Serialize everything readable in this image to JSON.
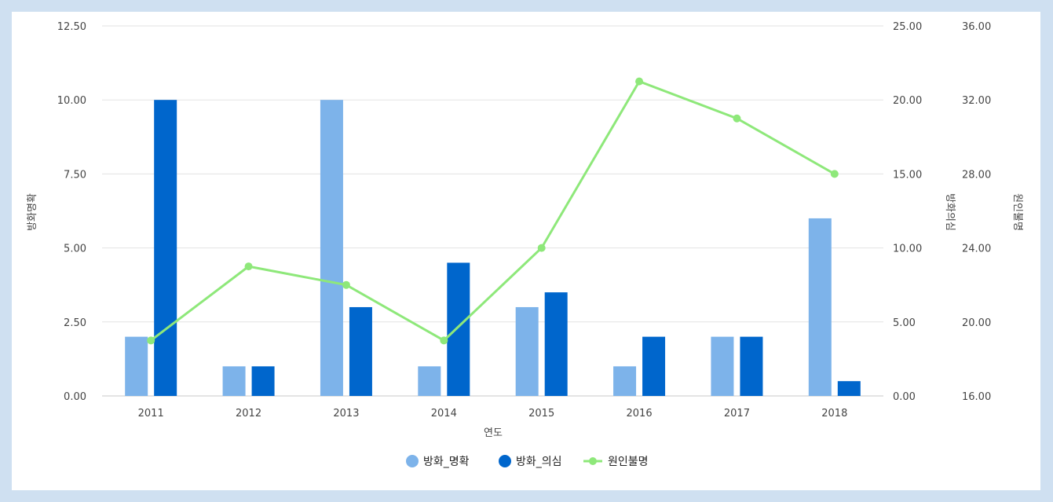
{
  "chart_data": {
    "type": "bar",
    "categories": [
      "2011",
      "2012",
      "2013",
      "2014",
      "2015",
      "2016",
      "2017",
      "2018"
    ],
    "xlabel": "연도",
    "series": [
      {
        "name": "방화_명확",
        "type": "bar",
        "axis": "left",
        "color": "#7db3ea",
        "values": [
          2,
          1,
          10,
          1,
          3,
          1,
          2,
          6
        ]
      },
      {
        "name": "방화_의심",
        "type": "bar",
        "axis": "right1",
        "color": "#0066cc",
        "values": [
          20,
          2,
          6,
          9,
          7,
          4,
          4,
          1
        ]
      },
      {
        "name": "원인불명",
        "type": "line",
        "axis": "right2",
        "color": "#8ee87a",
        "values": [
          19,
          23,
          22,
          19,
          24,
          33,
          31,
          28
        ]
      }
    ],
    "axes": {
      "left": {
        "label": "방화명확",
        "ylim": [
          0,
          12.5
        ],
        "ticks": [
          "0.00",
          "2.50",
          "5.00",
          "7.50",
          "10.00",
          "12.50"
        ]
      },
      "right1": {
        "label": "방화의심",
        "ylim": [
          0,
          25
        ],
        "ticks": [
          "0.00",
          "5.00",
          "10.00",
          "15.00",
          "20.00",
          "25.00"
        ]
      },
      "right2": {
        "label": "원인불명",
        "ylim": [
          16,
          36
        ],
        "ticks": [
          "16.00",
          "20.00",
          "24.00",
          "28.00",
          "32.00",
          "36.00"
        ]
      }
    },
    "grid": true,
    "legend_position": "bottom-center"
  }
}
